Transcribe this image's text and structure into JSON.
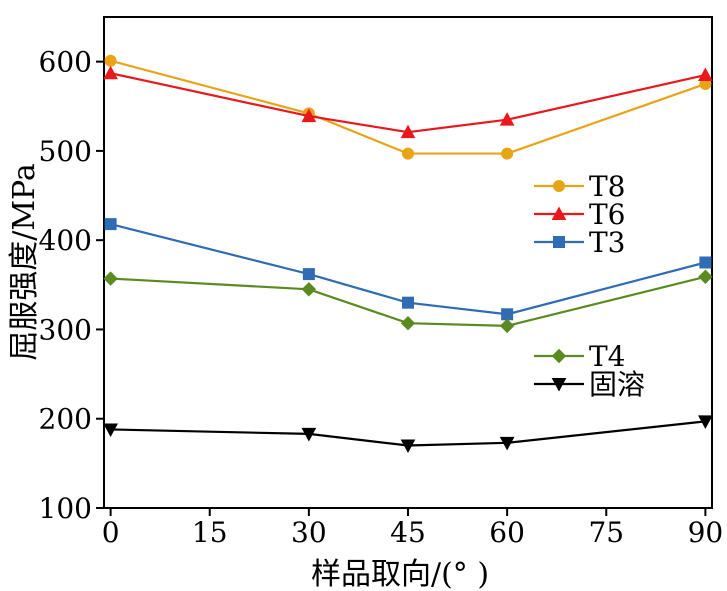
{
  "chart_data": {
    "type": "line",
    "title": "",
    "xlabel": "样品取向/(°  )",
    "ylabel": "屈服强度/MPa",
    "xlim": [
      -1,
      91
    ],
    "ylim": [
      100,
      650
    ],
    "x_ticks": [
      0,
      15,
      30,
      45,
      60,
      75,
      90
    ],
    "y_ticks": [
      100,
      200,
      300,
      400,
      500,
      600
    ],
    "grid": false,
    "x": [
      0,
      30,
      45,
      60,
      90
    ],
    "series": [
      {
        "name": "T8",
        "values": [
          601,
          542,
          497,
          497,
          575
        ],
        "color": "#E8A417",
        "marker": "circle"
      },
      {
        "name": "T6",
        "values": [
          587,
          539,
          521,
          535,
          585
        ],
        "color": "#E8181C",
        "marker": "triangle-up"
      },
      {
        "name": "T3",
        "values": [
          418,
          362,
          330,
          317,
          375
        ],
        "color": "#2F6CB3",
        "marker": "square"
      },
      {
        "name": "T4",
        "values": [
          357,
          345,
          307,
          304,
          359
        ],
        "color": "#5B8A21",
        "marker": "diamond"
      },
      {
        "name": "固溶",
        "values": [
          188,
          183,
          170,
          173,
          197
        ],
        "color": "#000000",
        "marker": "triangle-down"
      }
    ],
    "legend": {
      "placement": "center-right",
      "groups": [
        [
          "T8",
          "T6",
          "T3"
        ],
        [
          "T4",
          "固溶"
        ]
      ]
    }
  }
}
